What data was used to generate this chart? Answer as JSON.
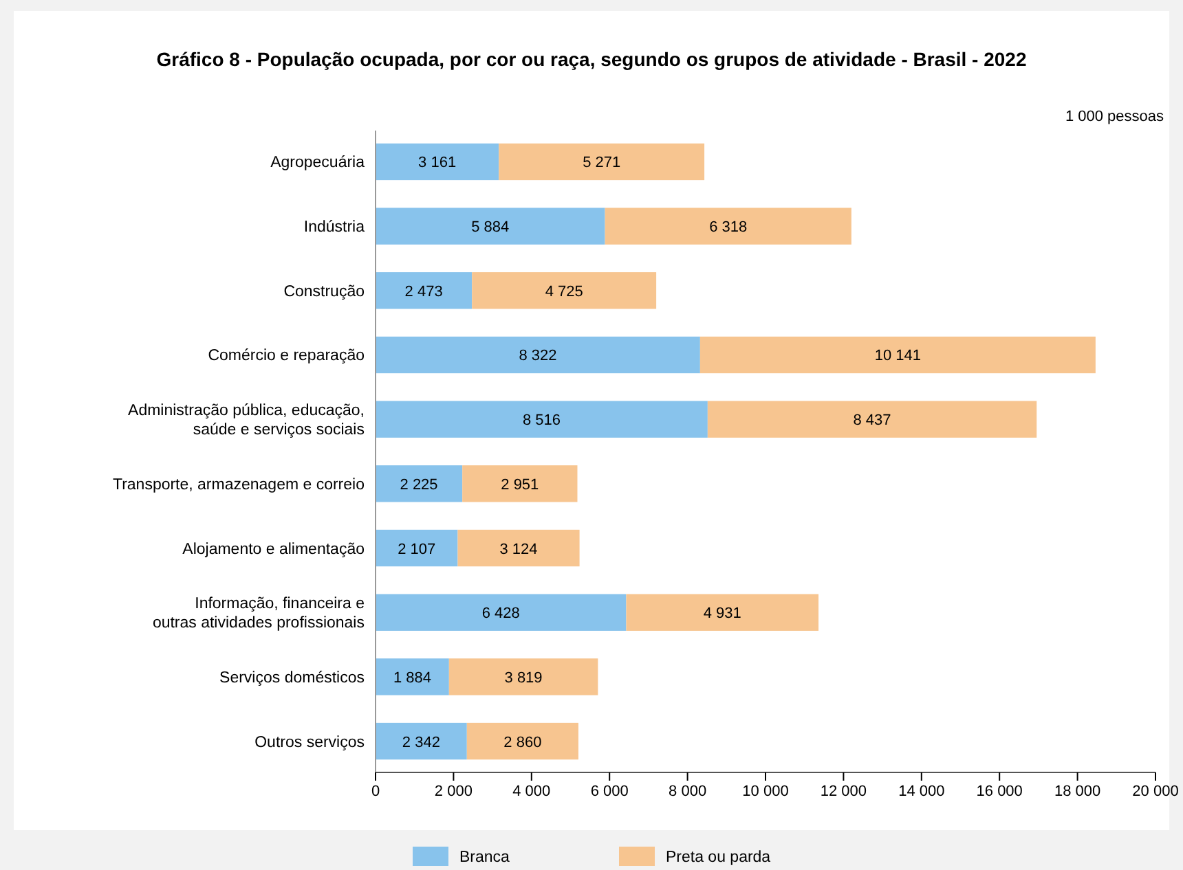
{
  "chart_data": {
    "type": "bar",
    "orientation": "horizontal",
    "stacked": true,
    "title": "Gráfico 8 - População ocupada, por cor ou raça, segundo os grupos de atividade - Brasil - 2022",
    "annotations": [
      "1 000 pessoas"
    ],
    "categories": [
      "Agropecuária",
      "Indústria",
      "Construção",
      "Comércio e reparação",
      "Administração pública, educação, saúde e serviços sociais",
      "Transporte, armazenagem e correio",
      "Alojamento e alimentação",
      "Informação, financeira e outras atividades profissionais",
      "Serviços domésticos",
      "Outros serviços"
    ],
    "series": [
      {
        "name": "Branca",
        "color": "#88c3ec",
        "values": [
          3161,
          5884,
          2473,
          8322,
          8516,
          2225,
          2107,
          6428,
          1884,
          2342
        ],
        "value_labels": [
          "3 161",
          "5 884",
          "2 473",
          "8 322",
          "8 516",
          "2 225",
          "2 107",
          "6 428",
          "1 884",
          "2 342"
        ]
      },
      {
        "name": "Preta ou parda",
        "color": "#f7c590",
        "values": [
          5271,
          6318,
          4725,
          10141,
          8437,
          2951,
          3124,
          4931,
          3819,
          2860
        ],
        "value_labels": [
          "5 271",
          "6 318",
          "4 725",
          "10 141",
          "8 437",
          "2 951",
          "3 124",
          "4 931",
          "3 819",
          "2 860"
        ]
      }
    ],
    "xlim": [
      0,
      20000
    ],
    "xticks": [
      0,
      {
        "value": 2000,
        "label": "2 000"
      },
      {
        "value": 4000,
        "label": "4 000"
      },
      {
        "value": 6000,
        "label": "6 000"
      },
      {
        "value": 8000,
        "label": "8 000"
      },
      {
        "value": 10000,
        "label": "10 000"
      },
      {
        "value": 12000,
        "label": "12 000"
      },
      {
        "value": 14000,
        "label": "14 000"
      },
      {
        "value": 16000,
        "label": "16 000"
      },
      {
        "value": 18000,
        "label": "18 000"
      },
      {
        "value": 20000,
        "label": "20 000"
      }
    ],
    "legend": "bottom",
    "grid": false
  }
}
